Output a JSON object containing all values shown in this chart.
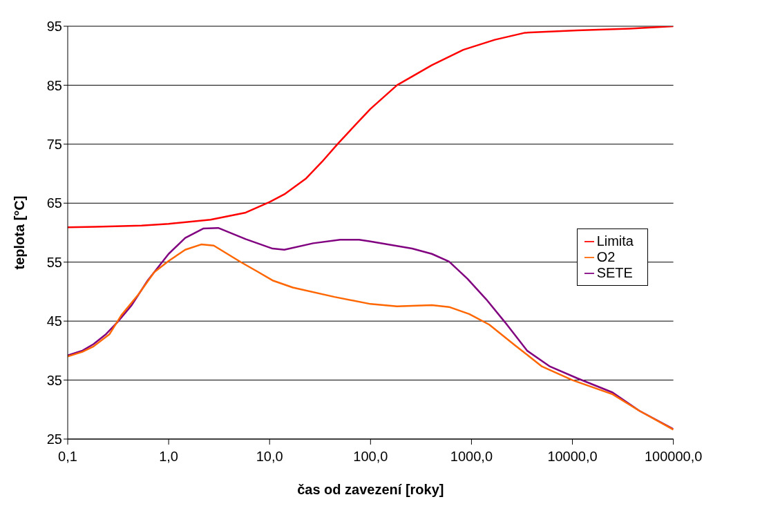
{
  "chart_data": {
    "type": "line",
    "xlabel": "čas od zavezení [roky]",
    "ylabel": "teplota [°C]",
    "log": "x",
    "grid": "y",
    "legend": "right",
    "marker": "none",
    "xlim": [
      0.1,
      100000
    ],
    "ylim": [
      25,
      95
    ],
    "xticks": [
      {
        "value": 0.1,
        "label": "0,1"
      },
      {
        "value": 1,
        "label": "1,0"
      },
      {
        "value": 10,
        "label": "10,0"
      },
      {
        "value": 100,
        "label": "100,0"
      },
      {
        "value": 1000,
        "label": "1000,0"
      },
      {
        "value": 10000,
        "label": "10000,0"
      },
      {
        "value": 100000,
        "label": "100000,0"
      }
    ],
    "yticks": [
      25,
      35,
      45,
      55,
      65,
      75,
      85,
      95
    ],
    "series": [
      {
        "name": "Limita",
        "color": "#ff0000",
        "x": [
          0.1,
          0.19,
          0.54,
          1,
          2.6,
          5.8,
          10,
          14,
          23,
          33,
          47,
          71,
          100,
          183,
          405,
          830,
          1700,
          3400,
          11200,
          37000,
          100000
        ],
        "values": [
          60.9,
          61.0,
          61.2,
          61.5,
          62.2,
          63.4,
          65.2,
          66.5,
          69.2,
          72.0,
          75.0,
          78.3,
          81.0,
          85.0,
          88.4,
          91.0,
          92.7,
          93.9,
          94.3,
          94.6,
          95.0
        ]
      },
      {
        "name": "SETE",
        "color": "#800080",
        "x": [
          0.1,
          0.14,
          0.18,
          0.24,
          0.31,
          0.43,
          0.62,
          1,
          1.46,
          2.2,
          3.1,
          5.8,
          10.7,
          14,
          27,
          50,
          77,
          100,
          258,
          405,
          600,
          910,
          1400,
          2150,
          3550,
          6000,
          11200,
          25000,
          46000,
          100000
        ],
        "values": [
          39.2,
          40.0,
          41.1,
          42.8,
          44.8,
          47.7,
          51.9,
          56.4,
          59.1,
          60.7,
          60.8,
          58.9,
          57.3,
          57.1,
          58.2,
          58.8,
          58.8,
          58.5,
          57.3,
          56.4,
          55.1,
          52.2,
          48.7,
          44.8,
          40.0,
          37.3,
          35.3,
          32.9,
          29.8,
          26.7
        ]
      },
      {
        "name": "O2",
        "color": "#ff6600",
        "x": [
          0.1,
          0.14,
          0.18,
          0.26,
          0.34,
          0.5,
          0.72,
          1,
          1.46,
          2.1,
          2.8,
          5.2,
          7.4,
          10.7,
          17,
          44,
          100,
          183,
          405,
          600,
          950,
          1500,
          2700,
          5000,
          10000,
          25000,
          46000,
          100000
        ],
        "values": [
          39.0,
          39.8,
          40.7,
          42.8,
          46.0,
          49.5,
          53.3,
          55.2,
          57.1,
          58.0,
          57.8,
          55.0,
          53.5,
          51.9,
          50.7,
          49.1,
          47.9,
          47.5,
          47.7,
          47.4,
          46.2,
          44.4,
          40.9,
          37.3,
          35.0,
          32.6,
          29.8,
          26.6
        ]
      }
    ]
  }
}
